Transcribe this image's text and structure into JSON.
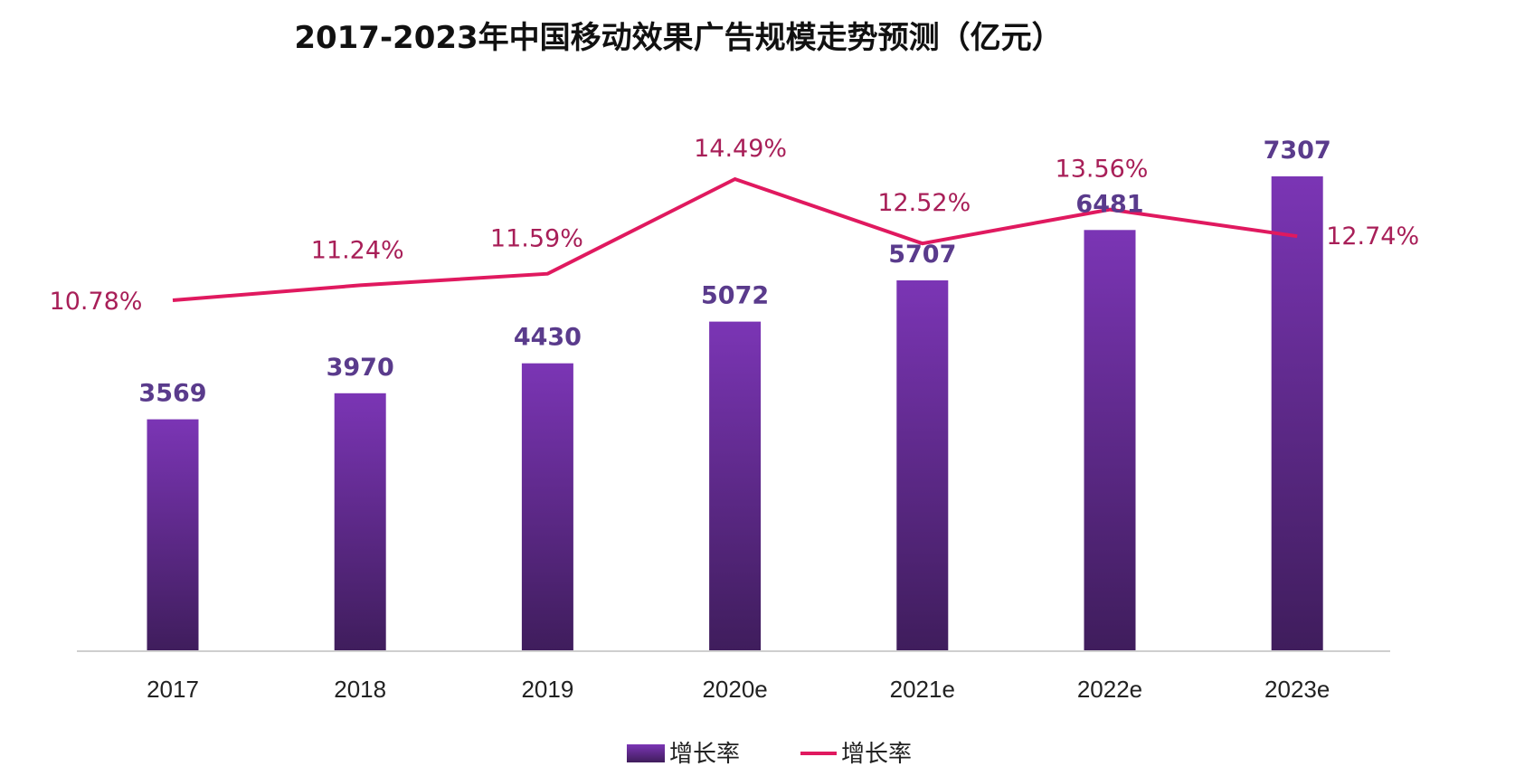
{
  "chart_data": {
    "type": "bar",
    "title": "2017-2023年中国移动效果广告规模走势预测（亿元）",
    "categories": [
      "2017",
      "2018",
      "2019",
      "2020e",
      "2021e",
      "2022e",
      "2023e"
    ],
    "series": [
      {
        "name": "增长率",
        "type": "bar",
        "values": [
          3569,
          3970,
          4430,
          5072,
          5707,
          6481,
          7307
        ],
        "labels": [
          "3569",
          "3970",
          "4430",
          "5072",
          "5707",
          "6481",
          "7307"
        ]
      },
      {
        "name": "增长率",
        "type": "line",
        "values": [
          10.78,
          11.24,
          11.59,
          14.49,
          12.52,
          13.56,
          12.74
        ],
        "labels": [
          "10.78%",
          "11.24%",
          "11.59%",
          "14.49%",
          "12.52%",
          "13.56%",
          "12.74%"
        ]
      }
    ],
    "legend_position": "bottom",
    "grid": false,
    "colors": {
      "bar_top": "#7b35b5",
      "bar_bottom": "#3f1d5c",
      "line": "#e0195f",
      "bar_label": "#5a3b8c",
      "rate_label": "#a81f58"
    }
  }
}
